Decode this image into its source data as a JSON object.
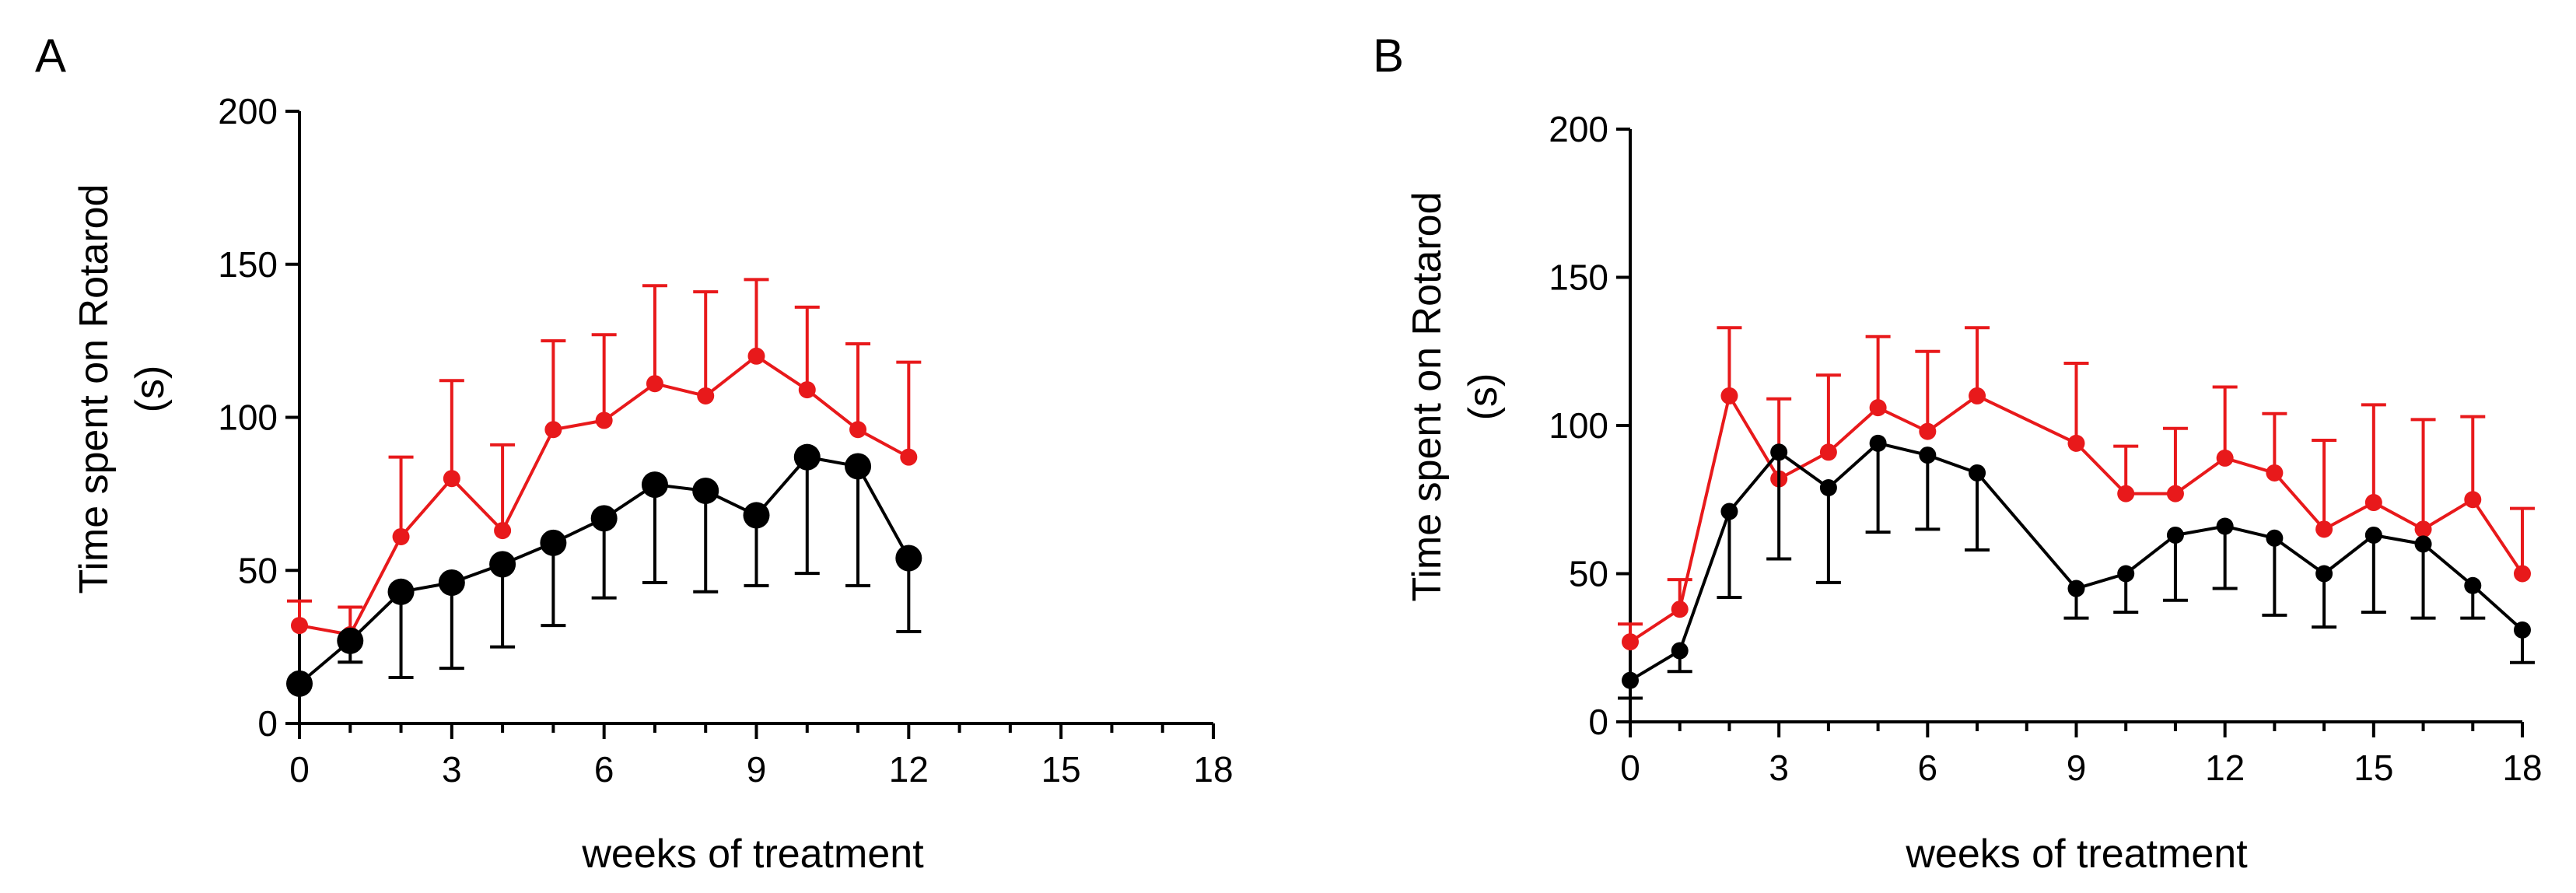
{
  "chart_data": [
    {
      "type": "line",
      "panel_label": "A",
      "xlabel": "weeks of treatment",
      "ylabel": "Time spent on Rotarod",
      "ylabel_unit": "(s)",
      "xlim": [
        0,
        18
      ],
      "ylim": [
        0,
        200
      ],
      "xticks": [
        0,
        3,
        6,
        9,
        12,
        15,
        18
      ],
      "yticks": [
        0,
        50,
        100,
        150,
        200
      ],
      "grid": false,
      "legend": "none",
      "series": [
        {
          "name": "red",
          "color": "#e8191b",
          "marker": "small",
          "error_direction": "up",
          "x": [
            0,
            1,
            2,
            3,
            4,
            5,
            6,
            7,
            8,
            9,
            10,
            11,
            12
          ],
          "values": [
            32,
            29,
            61,
            80,
            63,
            96,
            99,
            111,
            107,
            120,
            109,
            96,
            87
          ],
          "errors": [
            8,
            9,
            26,
            32,
            28,
            29,
            28,
            32,
            34,
            25,
            27,
            28,
            31
          ]
        },
        {
          "name": "black",
          "color": "#000000",
          "marker": "large",
          "error_direction": "down",
          "x": [
            0,
            1,
            2,
            3,
            4,
            5,
            6,
            7,
            8,
            9,
            10,
            11,
            12
          ],
          "values": [
            13,
            27,
            43,
            46,
            52,
            59,
            67,
            78,
            76,
            68,
            87,
            84,
            54
          ],
          "errors": [
            0,
            7,
            28,
            28,
            27,
            27,
            26,
            32,
            33,
            23,
            38,
            39,
            24
          ]
        }
      ]
    },
    {
      "type": "line",
      "panel_label": "B",
      "xlabel": "weeks of treatment",
      "ylabel": "Time spent on Rotarod",
      "ylabel_unit": "(s)",
      "xlim": [
        0,
        18
      ],
      "ylim": [
        0,
        200
      ],
      "xticks": [
        0,
        3,
        6,
        9,
        12,
        15,
        18
      ],
      "yticks": [
        0,
        50,
        100,
        150,
        200
      ],
      "grid": false,
      "legend": "none",
      "series": [
        {
          "name": "red",
          "color": "#e8191b",
          "marker": "small",
          "error_direction": "up",
          "x": [
            0,
            1,
            2,
            3,
            4,
            5,
            6,
            7,
            9,
            10,
            11,
            12,
            13,
            14,
            15,
            16,
            17,
            18
          ],
          "values": [
            27,
            38,
            110,
            82,
            91,
            106,
            98,
            110,
            94,
            77,
            77,
            89,
            84,
            65,
            74,
            65,
            75,
            50
          ],
          "errors": [
            6,
            10,
            23,
            27,
            26,
            24,
            27,
            23,
            27,
            16,
            22,
            24,
            20,
            30,
            33,
            37,
            28,
            22
          ]
        },
        {
          "name": "black",
          "color": "#000000",
          "marker": "small",
          "error_direction": "down",
          "x": [
            0,
            1,
            2,
            3,
            4,
            5,
            6,
            7,
            9,
            10,
            11,
            12,
            13,
            14,
            15,
            16,
            17,
            18
          ],
          "values": [
            14,
            24,
            71,
            91,
            79,
            94,
            90,
            84,
            45,
            50,
            63,
            66,
            62,
            50,
            63,
            60,
            46,
            31
          ],
          "errors": [
            6,
            7,
            29,
            36,
            32,
            30,
            25,
            26,
            10,
            13,
            22,
            21,
            26,
            18,
            26,
            25,
            11,
            11
          ]
        }
      ]
    }
  ]
}
